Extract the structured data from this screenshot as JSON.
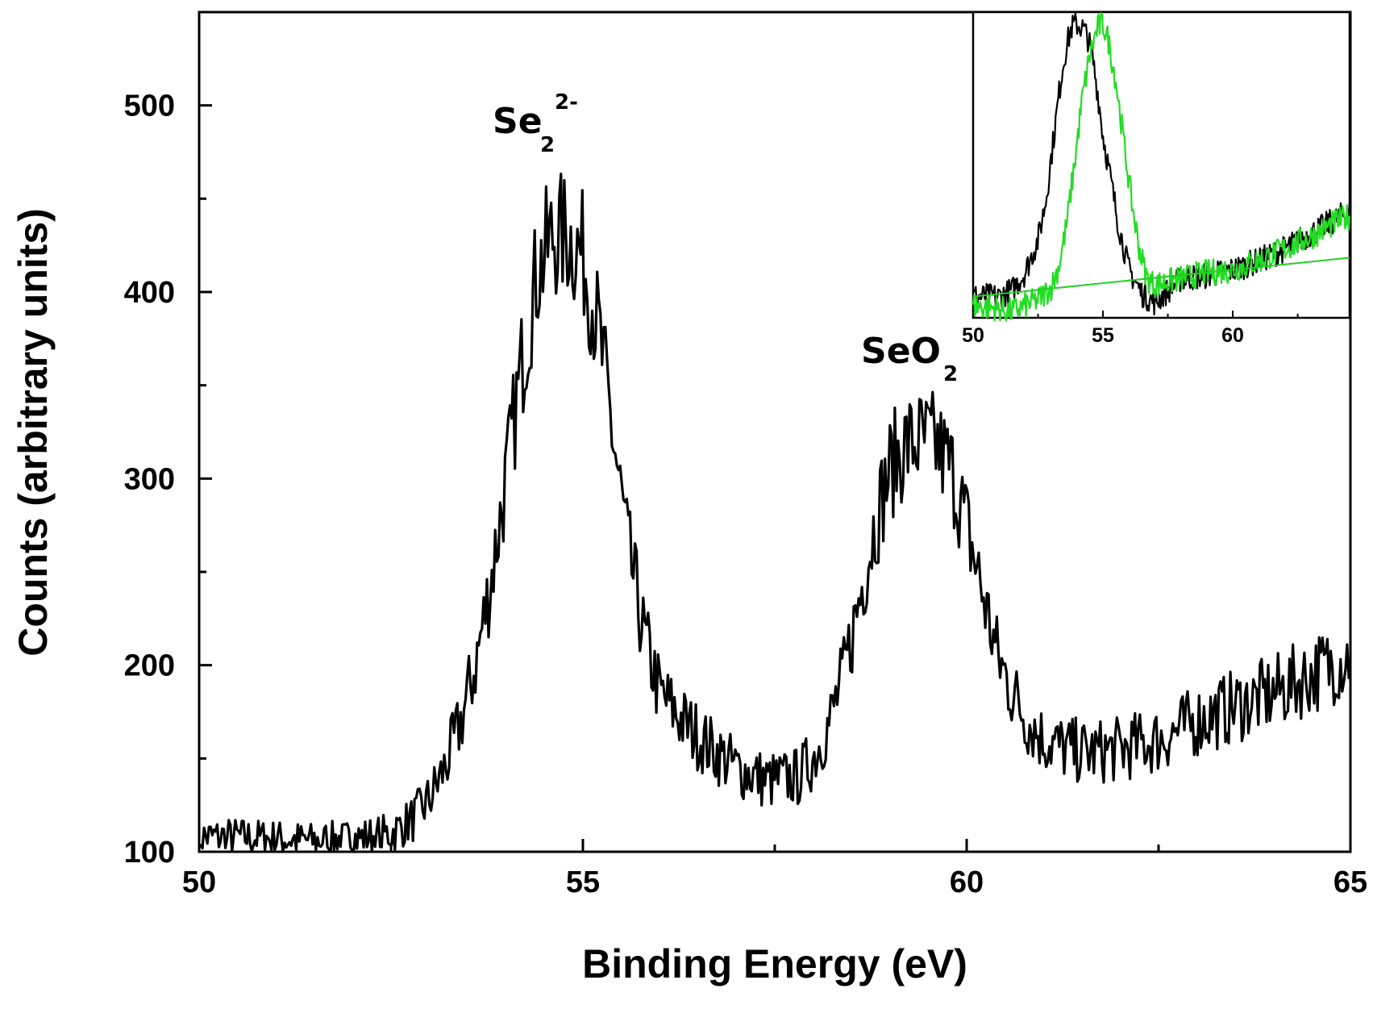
{
  "chart_data": [
    {
      "type": "line",
      "xlabel": "Binding Energy (eV)",
      "ylabel": "Counts (arbitrary units)",
      "xlim": [
        50,
        65
      ],
      "ylim": [
        100,
        550
      ],
      "x_ticks": [
        "50",
        "55",
        "60",
        "65"
      ],
      "y_ticks": [
        "100",
        "200",
        "300",
        "400",
        "500"
      ],
      "grid": false,
      "annotations": [
        {
          "text": "Se",
          "subscript": "2",
          "superscript": "2-",
          "x": 54.2,
          "y": 480
        },
        {
          "text": "SeO",
          "subscript": "2",
          "x": 59.0,
          "y": 340
        }
      ],
      "series": [
        {
          "color": "#000000",
          "x": [
            50.0,
            50.5,
            51.0,
            51.5,
            52.0,
            52.5,
            52.8,
            53.0,
            53.2,
            53.4,
            53.6,
            53.8,
            54.0,
            54.2,
            54.4,
            54.6,
            54.8,
            55.0,
            55.2,
            55.4,
            55.6,
            55.8,
            56.0,
            56.3,
            56.6,
            57.0,
            57.4,
            57.8,
            58.0,
            58.2,
            58.4,
            58.6,
            58.8,
            59.0,
            59.2,
            59.4,
            59.6,
            59.8,
            60.0,
            60.2,
            60.4,
            60.6,
            60.8,
            61.0,
            61.3,
            61.6,
            62.0,
            62.5,
            63.0,
            63.5,
            64.0,
            64.5,
            65.0
          ],
          "y": [
            108,
            108,
            107,
            106,
            107,
            110,
            118,
            128,
            145,
            168,
            200,
            245,
            300,
            360,
            410,
            430,
            430,
            420,
            380,
            320,
            260,
            215,
            185,
            170,
            158,
            145,
            138,
            140,
            150,
            168,
            195,
            235,
            275,
            305,
            318,
            320,
            318,
            305,
            275,
            240,
            205,
            185,
            170,
            160,
            155,
            153,
            155,
            160,
            170,
            178,
            185,
            195,
            205
          ]
        }
      ],
      "inset": {
        "type": "line",
        "xlim": [
          50,
          64.5
        ],
        "x_ticks": [
          "50",
          "55",
          "60"
        ],
        "series": [
          {
            "color": "#000000",
            "x": [
              50.0,
              51.0,
              51.5,
              52.0,
              52.5,
              52.8,
              53.0,
              53.2,
              53.4,
              53.6,
              53.8,
              54.0,
              54.2,
              54.4,
              54.6,
              54.8,
              55.0,
              55.3,
              55.6,
              56.0,
              56.5,
              57.0,
              57.5,
              58.0,
              59.0,
              60.0,
              61.0,
              62.0,
              63.0,
              64.0,
              64.5
            ],
            "y": [
              0.06,
              0.06,
              0.08,
              0.14,
              0.25,
              0.38,
              0.52,
              0.66,
              0.8,
              0.9,
              0.96,
              0.97,
              0.96,
              0.93,
              0.86,
              0.74,
              0.6,
              0.45,
              0.3,
              0.15,
              0.07,
              0.04,
              0.08,
              0.12,
              0.13,
              0.15,
              0.18,
              0.22,
              0.27,
              0.32,
              0.35
            ]
          },
          {
            "color": "#22dd22",
            "x": [
              50.0,
              51.0,
              51.5,
              52.0,
              52.5,
              53.0,
              53.3,
              53.6,
              53.9,
              54.2,
              54.5,
              54.8,
              55.0,
              55.2,
              55.5,
              55.8,
              56.1,
              56.4,
              56.7,
              57.0,
              57.5,
              58.0,
              59.0,
              60.0,
              61.0,
              62.0,
              63.0,
              64.0,
              64.5
            ],
            "y": [
              0.03,
              0.02,
              0.01,
              0.03,
              0.05,
              0.09,
              0.16,
              0.3,
              0.5,
              0.72,
              0.87,
              0.96,
              0.97,
              0.92,
              0.78,
              0.58,
              0.38,
              0.22,
              0.12,
              0.1,
              0.11,
              0.12,
              0.14,
              0.15,
              0.18,
              0.22,
              0.26,
              0.31,
              0.33
            ]
          },
          {
            "color": "#000000",
            "x": [
              50.0,
              64.5
            ],
            "y": [
              0.06,
              0.19
            ]
          },
          {
            "color": "#22dd22",
            "x": [
              50.0,
              64.5
            ],
            "y": [
              0.06,
              0.19
            ]
          }
        ]
      }
    }
  ]
}
